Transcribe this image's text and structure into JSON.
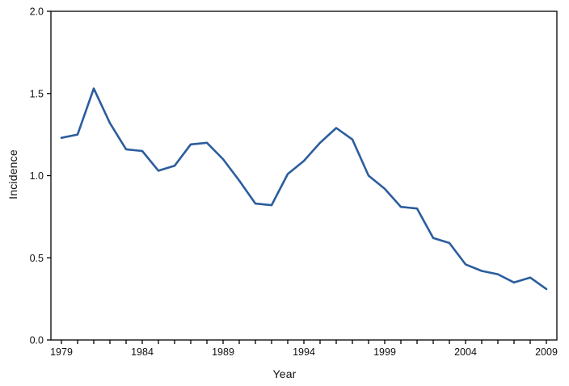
{
  "chart_data": {
    "type": "line",
    "title": "",
    "xlabel": "Year",
    "ylabel": "Incidence",
    "x": [
      1979,
      1980,
      1981,
      1982,
      1983,
      1984,
      1985,
      1986,
      1987,
      1988,
      1989,
      1990,
      1991,
      1992,
      1993,
      1994,
      1995,
      1996,
      1997,
      1998,
      1999,
      2000,
      2001,
      2002,
      2003,
      2004,
      2005,
      2006,
      2007,
      2008,
      2009
    ],
    "values": [
      1.23,
      1.25,
      1.53,
      1.32,
      1.16,
      1.15,
      1.03,
      1.06,
      1.19,
      1.2,
      1.1,
      0.97,
      0.83,
      0.82,
      1.01,
      1.09,
      1.2,
      1.29,
      1.22,
      1.0,
      0.92,
      0.81,
      0.8,
      0.62,
      0.59,
      0.46,
      0.42,
      0.4,
      0.35,
      0.38,
      0.31
    ],
    "xlim": [
      1979,
      2009
    ],
    "ylim": [
      0.0,
      2.0
    ],
    "yticks": [
      0.0,
      0.5,
      1.0,
      1.5,
      2.0
    ],
    "ytick_labels": [
      "0.0",
      "0.5",
      "1.0",
      "1.5",
      "2.0"
    ],
    "xtick_years": [
      1979,
      1984,
      1989,
      1994,
      1999,
      2004,
      2009
    ],
    "xtick_labels": [
      "1979",
      "1984",
      "1989",
      "1994",
      "1999",
      "2004",
      "2009"
    ],
    "grid": false,
    "legend_position": "none",
    "line_color": "#2b5d9d",
    "axis_color": "#000000",
    "background_color": "#ffffff"
  }
}
